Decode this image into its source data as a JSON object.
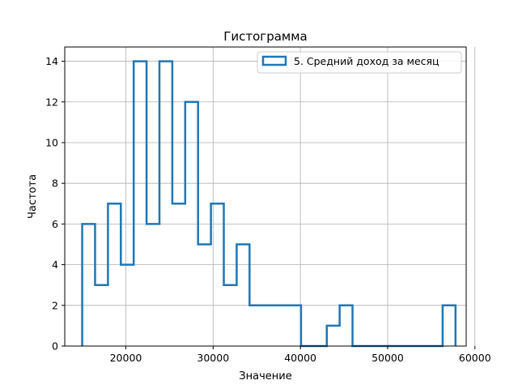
{
  "chart_data": {
    "type": "histogram",
    "title": "Гистограмма",
    "xlabel": "Значение",
    "ylabel": "Частота",
    "xlim": [
      13000,
      59000
    ],
    "ylim": [
      0,
      14.7
    ],
    "xticks": [
      20000,
      30000,
      40000,
      50000,
      60000
    ],
    "yticks": [
      0,
      2,
      4,
      6,
      8,
      10,
      12,
      14
    ],
    "grid": true,
    "histtype": "step",
    "color": "#1f77b4",
    "legend": {
      "placement": "top-right"
    },
    "series": [
      {
        "name": "5. Средний доход за месяц",
        "bin_start": 15000,
        "bin_width": 1475,
        "counts": [
          6,
          3,
          7,
          4,
          14,
          6,
          14,
          7,
          12,
          5,
          7,
          3,
          5,
          2,
          2,
          2,
          2,
          0,
          0,
          1,
          2,
          0,
          0,
          0,
          0,
          0,
          0,
          0,
          2
        ]
      }
    ]
  }
}
